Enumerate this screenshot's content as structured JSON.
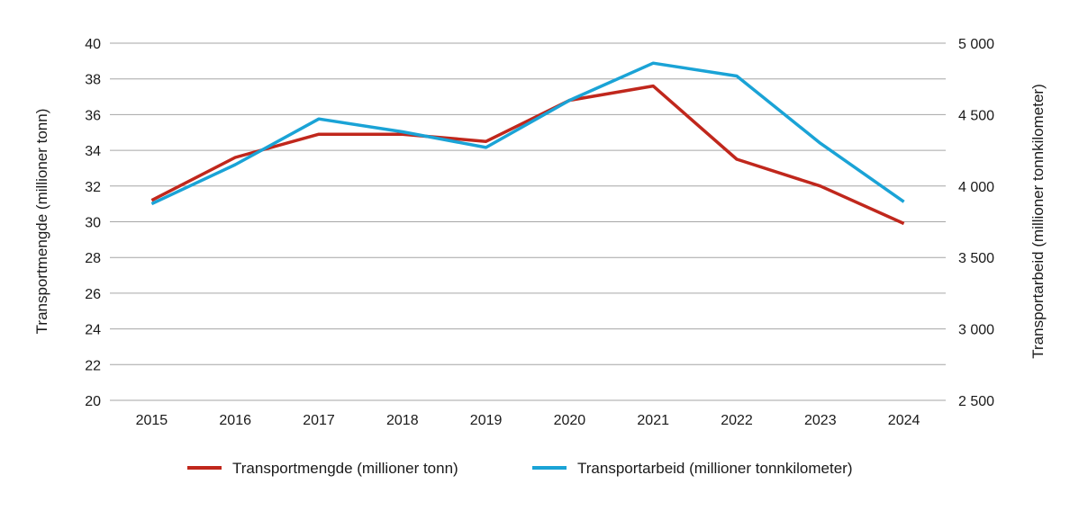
{
  "chart_data": {
    "type": "line",
    "title": "",
    "categories": [
      "2015",
      "2016",
      "2017",
      "2018",
      "2019",
      "2020",
      "2021",
      "2022",
      "2023",
      "2024"
    ],
    "series": [
      {
        "name": "Transportmengde (millioner tonn)",
        "axis": "left",
        "color": "#c0271c",
        "values": [
          31.2,
          33.6,
          34.9,
          34.9,
          34.5,
          36.8,
          37.6,
          33.5,
          32.0,
          29.9
        ]
      },
      {
        "name": "Transportarbeid (millioner tonnkilometer)",
        "axis": "right",
        "color": "#1aa3d6",
        "values": [
          3875,
          4150,
          4470,
          4380,
          4270,
          4600,
          4860,
          4770,
          4300,
          3890
        ]
      }
    ],
    "ylabel_left": "Transportmengde (millioner tonn)",
    "ylabel_right": "Transportarbeid (millioner tonnkilometer)",
    "ylim_left": [
      20,
      40
    ],
    "ylim_right": [
      2500,
      5000
    ],
    "yticks_left": [
      "20",
      "22",
      "24",
      "26",
      "28",
      "30",
      "32",
      "34",
      "36",
      "38",
      "40"
    ],
    "yticks_right": [
      "2 500",
      "3 000",
      "3 500",
      "4 000",
      "4 500",
      "5 000"
    ],
    "grid": true,
    "legend_position": "bottom"
  }
}
